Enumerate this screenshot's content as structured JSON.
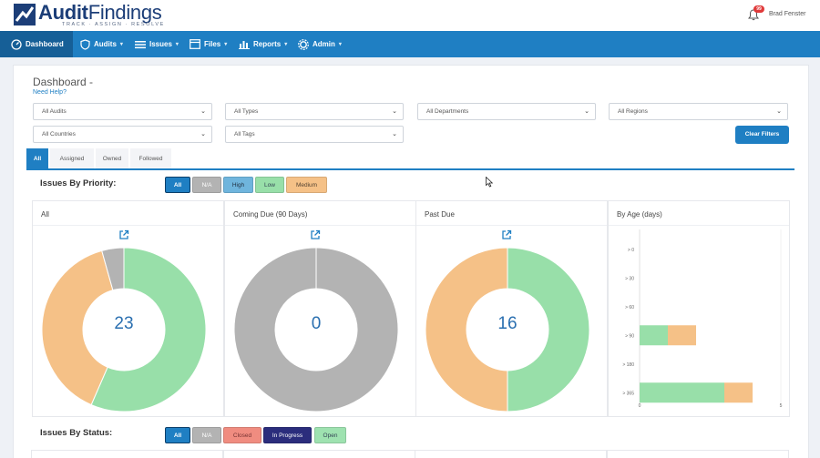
{
  "brand": {
    "name_bold": "Audit",
    "name_rest": "Findings",
    "tagline": "TRACK · ASSIGN · RESOLVE"
  },
  "header": {
    "user_name": "Brad Fenster",
    "notification_count": "99"
  },
  "nav": {
    "items": [
      {
        "label": "Dashboard",
        "icon": "dashboard-icon",
        "active": true
      },
      {
        "label": "Audits",
        "icon": "shield-icon"
      },
      {
        "label": "Issues",
        "icon": "list-icon"
      },
      {
        "label": "Files",
        "icon": "folder-icon"
      },
      {
        "label": "Reports",
        "icon": "bar-chart-icon"
      },
      {
        "label": "Admin",
        "icon": "gear-icon"
      }
    ]
  },
  "page": {
    "title": "Dashboard -",
    "help_link": "Need Help?"
  },
  "filters": {
    "audits": "All Audits",
    "types": "All Types",
    "departments": "All Departments",
    "regions": "All Regions",
    "countries": "All Countries",
    "tags": "All Tags",
    "clear_button": "Clear Filters"
  },
  "tabs": [
    "All",
    "Assigned",
    "Owned",
    "Followed"
  ],
  "priority": {
    "label": "Issues By Priority:",
    "buttons": [
      "All",
      "N/A",
      "High",
      "Low",
      "Medium"
    ]
  },
  "status": {
    "label": "Issues By Status:",
    "buttons": [
      "All",
      "N/A",
      "Closed",
      "In Progress",
      "Open"
    ]
  },
  "colors": {
    "primary": "#1f7fc3",
    "low": "#98dfa9",
    "medium": "#f5c187",
    "na": "#b3b3b3",
    "high": "#6fb5dd",
    "closed": "#f08c80",
    "in_progress": "#2b2d7c",
    "open": "#9ee2b0"
  },
  "cards": {
    "all": {
      "title": "All",
      "value": "23"
    },
    "coming_due": {
      "title": "Coming Due (90 Days)",
      "value": "0"
    },
    "past_due": {
      "title": "Past Due",
      "value": "16"
    },
    "by_age": {
      "title": "By Age (days)",
      "rows": [
        "> 0",
        "> 30",
        "> 60",
        "> 90",
        "> 180",
        "> 365"
      ],
      "x_ticks": [
        "0",
        "5"
      ]
    }
  },
  "chart_data": [
    {
      "type": "pie",
      "title": "All",
      "labels": [
        "Low",
        "Medium",
        "N/A"
      ],
      "values": [
        13,
        9,
        1
      ],
      "center_value": 23
    },
    {
      "type": "pie",
      "title": "Coming Due (90 Days)",
      "labels": [
        "N/A"
      ],
      "values": [
        1
      ],
      "center_value": 0
    },
    {
      "type": "pie",
      "title": "Past Due",
      "labels": [
        "Low",
        "Medium"
      ],
      "values": [
        8,
        8
      ],
      "center_value": 16
    },
    {
      "type": "bar",
      "title": "By Age (days)",
      "categories": [
        "> 0",
        "> 30",
        "> 60",
        "> 90",
        "> 180",
        "> 365"
      ],
      "series": [
        {
          "name": "Low",
          "values": [
            0,
            0,
            0,
            1,
            0,
            3
          ]
        },
        {
          "name": "Medium",
          "values": [
            0,
            0,
            0,
            1,
            0,
            1
          ]
        }
      ],
      "xlim": [
        0,
        5
      ]
    }
  ]
}
